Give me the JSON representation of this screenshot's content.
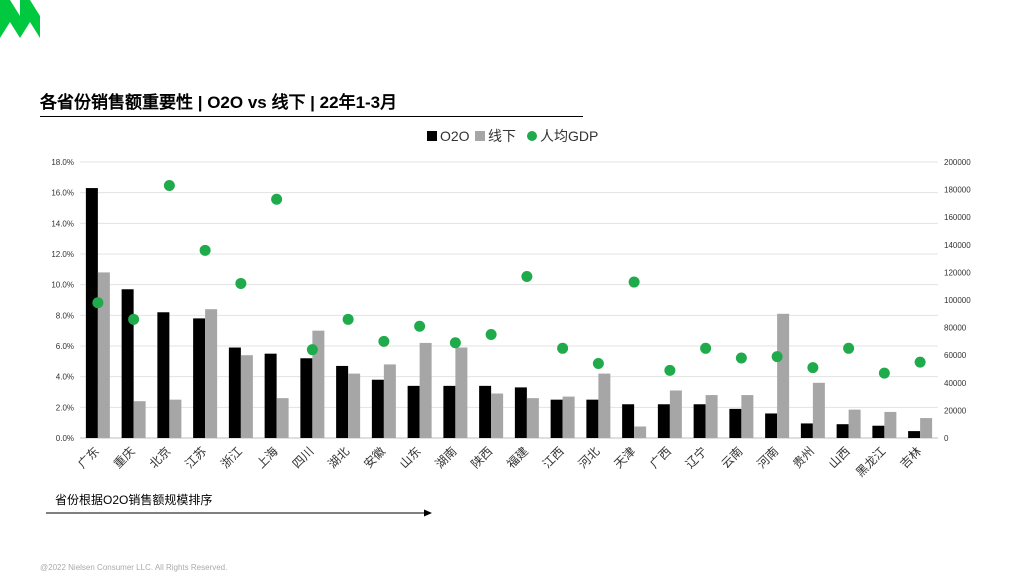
{
  "title": "各省份销售额重要性 | O2O vs 线下 | 22年1-3月",
  "sort_note": "省份根据O2O销售额规模排序",
  "footer": "@2022 Nielsen Consumer LLC. All Rights Reserved.",
  "colors": {
    "o2o": "#000000",
    "offline": "#a6a6a6",
    "gdp": "#1faa4b",
    "brand": "#00c940"
  },
  "chart_data": {
    "type": "bar",
    "categories": [
      "广东",
      "重庆",
      "北京",
      "江苏",
      "浙江",
      "上海",
      "四川",
      "湖北",
      "安徽",
      "山东",
      "湖南",
      "陕西",
      "福建",
      "江西",
      "河北",
      "天津",
      "广西",
      "辽宁",
      "云南",
      "河南",
      "贵州",
      "山西",
      "黑龙江",
      "吉林"
    ],
    "series": [
      {
        "name": "O2O",
        "axis": "left",
        "type": "bar",
        "values": [
          16.3,
          9.7,
          8.2,
          7.8,
          5.9,
          5.5,
          5.2,
          4.7,
          3.8,
          3.4,
          3.4,
          3.4,
          3.3,
          2.5,
          2.5,
          2.2,
          2.2,
          2.2,
          1.9,
          1.6,
          0.95,
          0.9,
          0.8,
          0.45
        ]
      },
      {
        "name": "线下",
        "axis": "left",
        "type": "bar",
        "values": [
          10.8,
          2.4,
          2.5,
          8.4,
          5.4,
          2.6,
          7.0,
          4.2,
          4.8,
          6.2,
          5.9,
          2.9,
          2.6,
          2.7,
          4.2,
          0.75,
          3.1,
          2.8,
          2.8,
          8.1,
          3.6,
          1.85,
          1.7,
          1.3
        ]
      },
      {
        "name": "人均GDP",
        "axis": "right",
        "type": "scatter",
        "values": [
          98000,
          86000,
          183000,
          136000,
          112000,
          173000,
          64000,
          86000,
          70000,
          81000,
          69000,
          75000,
          117000,
          65000,
          54000,
          113000,
          49000,
          65000,
          58000,
          59000,
          51000,
          65000,
          47000,
          55000
        ]
      }
    ],
    "y_left": {
      "min": 0,
      "max": 18,
      "step": 2,
      "tick_suffix": "%",
      "decimals": 1
    },
    "y_right": {
      "min": 0,
      "max": 200000,
      "step": 20000
    },
    "grid": true,
    "legend_position": "top-center"
  }
}
